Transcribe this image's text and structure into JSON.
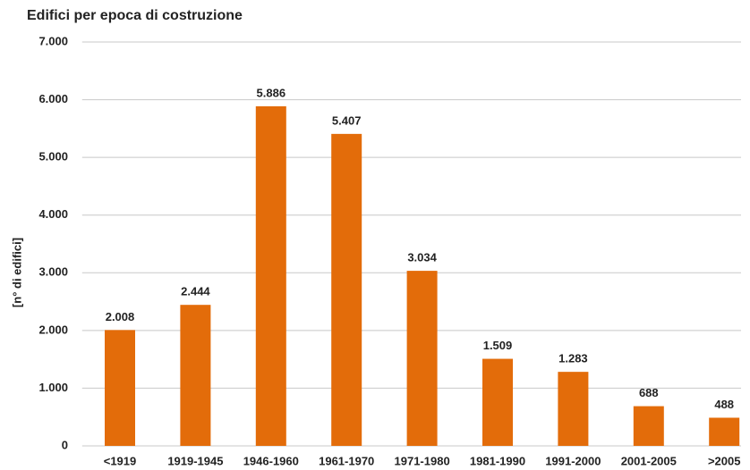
{
  "chart_data": {
    "type": "bar",
    "title": "Edifici per epoca di costruzione",
    "y_label": "[n° di edifici]",
    "categories": [
      "<1919",
      "1919-1945",
      "1946-1960",
      "1961-1970",
      "1971-1980",
      "1981-1990",
      "1991-2000",
      "2001-2005",
      ">2005"
    ],
    "values": [
      2008,
      2444,
      5886,
      5407,
      3034,
      1509,
      1283,
      688,
      488
    ],
    "value_labels": [
      "2.008",
      "2.444",
      "5.886",
      "5.407",
      "3.034",
      "1.509",
      "1.283",
      "688",
      "488"
    ],
    "color": "#e36c0a",
    "ylim": [
      0,
      7000
    ],
    "yticks": [
      0,
      {
        "value": 1000,
        "label": "1.000"
      },
      {
        "value": 2000,
        "label": "2.000"
      },
      {
        "value": 3000,
        "label": "3.000"
      },
      {
        "value": 4000,
        "label": "4.000"
      },
      {
        "value": 5000,
        "label": "5.000"
      },
      {
        "value": 6000,
        "label": "6.000"
      },
      {
        "value": 7000,
        "label": "7.000"
      }
    ],
    "grid": true
  }
}
